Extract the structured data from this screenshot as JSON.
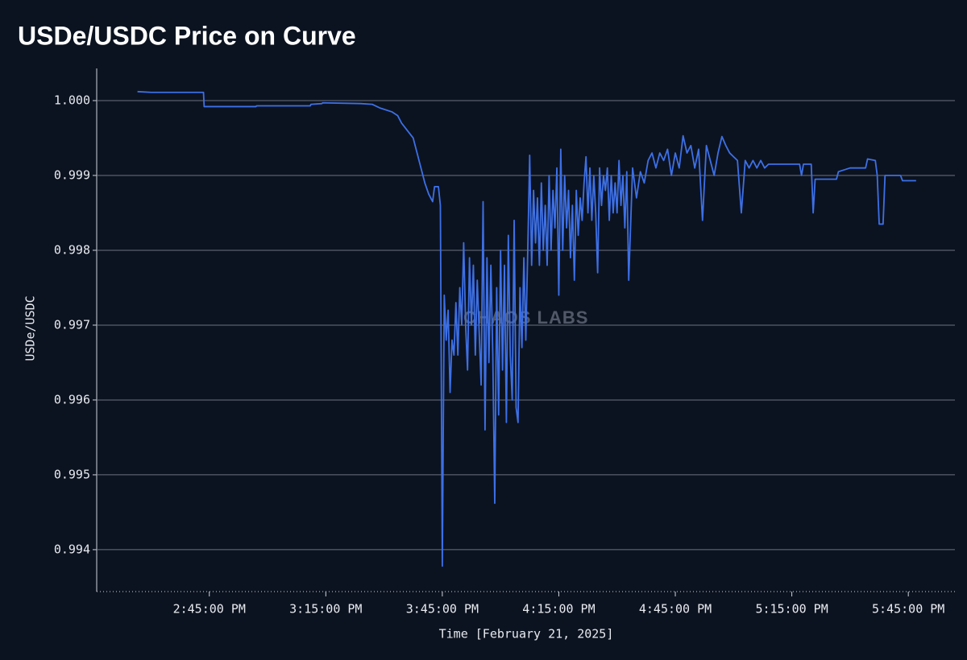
{
  "chart_data": {
    "type": "line",
    "title": "USDe/USDC Price on Curve",
    "xlabel": "Time [February 21, 2025]",
    "ylabel": "USDe/USDC",
    "watermark": "CHAOS LABS",
    "color": "#3d70e6",
    "grid": true,
    "xlim": [
      "14:16:00",
      "17:57:00"
    ],
    "xticks": [
      {
        "value": "14:45:00",
        "label": "2:45:00 PM"
      },
      {
        "value": "15:15:00",
        "label": "3:15:00 PM"
      },
      {
        "value": "15:45:00",
        "label": "3:45:00 PM"
      },
      {
        "value": "16:15:00",
        "label": "4:15:00 PM"
      },
      {
        "value": "16:45:00",
        "label": "4:45:00 PM"
      },
      {
        "value": "17:15:00",
        "label": "5:15:00 PM"
      },
      {
        "value": "17:45:00",
        "label": "5:45:00 PM"
      }
    ],
    "ylim": [
      0.99344,
      1.00043
    ],
    "yticks": [
      0.994,
      0.995,
      0.996,
      0.997,
      0.998,
      0.999,
      {
        "value": 1,
        "label": "1.000"
      }
    ],
    "x": [
      "14:26:30",
      "14:30:00",
      "14:43:30",
      "14:43:40",
      "14:57:00",
      "14:57:10",
      "15:11:00",
      "15:11:10",
      "15:14:00",
      "15:14:10",
      "15:24:00",
      "15:27:00",
      "15:29:00",
      "15:32:00",
      "15:33:30",
      "15:34:30",
      "15:36:00",
      "15:37:30",
      "15:38:30",
      "15:39:30",
      "15:40:30",
      "15:41:30",
      "15:42:30",
      "15:43:00",
      "15:44:00",
      "15:44:30",
      "15:45:00",
      "15:45:30",
      "15:46:00",
      "15:46:30",
      "15:47:00",
      "15:47:30",
      "15:48:00",
      "15:48:30",
      "15:49:00",
      "15:49:30",
      "15:50:00",
      "15:50:30",
      "15:51:00",
      "15:51:30",
      "15:52:00",
      "15:52:30",
      "15:53:00",
      "15:53:30",
      "15:54:00",
      "15:54:30",
      "15:55:00",
      "15:55:30",
      "15:56:00",
      "15:56:30",
      "15:57:00",
      "15:57:30",
      "15:58:00",
      "15:58:30",
      "15:59:00",
      "15:59:30",
      "16:00:00",
      "16:00:30",
      "16:01:00",
      "16:01:30",
      "16:02:00",
      "16:02:30",
      "16:03:00",
      "16:03:30",
      "16:04:00",
      "16:04:30",
      "16:05:00",
      "16:05:30",
      "16:06:00",
      "16:06:30",
      "16:07:00",
      "16:07:30",
      "16:08:00",
      "16:08:30",
      "16:09:00",
      "16:09:30",
      "16:10:00",
      "16:10:30",
      "16:11:00",
      "16:11:30",
      "16:12:00",
      "16:12:30",
      "16:13:00",
      "16:13:30",
      "16:14:00",
      "16:14:30",
      "16:15:00",
      "16:15:30",
      "16:16:00",
      "16:16:30",
      "16:17:00",
      "16:17:30",
      "16:18:00",
      "16:18:30",
      "16:19:00",
      "16:19:30",
      "16:20:00",
      "16:20:30",
      "16:21:00",
      "16:21:30",
      "16:22:00",
      "16:22:30",
      "16:23:00",
      "16:23:30",
      "16:24:00",
      "16:24:30",
      "16:25:00",
      "16:25:30",
      "16:26:00",
      "16:26:30",
      "16:27:00",
      "16:27:30",
      "16:28:00",
      "16:28:30",
      "16:29:00",
      "16:29:30",
      "16:30:00",
      "16:30:30",
      "16:31:00",
      "16:31:30",
      "16:32:00",
      "16:32:30",
      "16:33:00",
      "16:34:00",
      "16:35:00",
      "16:36:00",
      "16:37:00",
      "16:38:00",
      "16:39:00",
      "16:40:00",
      "16:41:00",
      "16:42:00",
      "16:43:00",
      "16:44:00",
      "16:45:00",
      "16:46:00",
      "16:47:00",
      "16:48:00",
      "16:49:00",
      "16:50:00",
      "16:51:00",
      "16:52:00",
      "16:53:00",
      "16:54:00",
      "16:55:00",
      "16:56:00",
      "16:57:00",
      "16:58:00",
      "16:59:00",
      "17:00:00",
      "17:01:00",
      "17:02:00",
      "17:03:00",
      "17:04:00",
      "17:05:00",
      "17:06:00",
      "17:07:00",
      "17:08:00",
      "17:09:00",
      "17:17:00",
      "17:17:30",
      "17:18:00",
      "17:20:00",
      "17:20:30",
      "17:21:00",
      "17:26:30",
      "17:27:00",
      "17:30:00",
      "17:34:00",
      "17:34:30",
      "17:36:30",
      "17:37:00",
      "17:37:30",
      "17:38:30",
      "17:39:00",
      "17:43:00",
      "17:43:30",
      "17:47:00"
    ],
    "values": [
      1.00012,
      1.00011,
      1.00011,
      0.99992,
      0.99992,
      0.99993,
      0.99993,
      0.99995,
      0.99996,
      0.99997,
      0.99996,
      0.99995,
      0.9999,
      0.99985,
      0.9998,
      0.9997,
      0.9996,
      0.9995,
      0.9993,
      0.9991,
      0.9989,
      0.99875,
      0.99865,
      0.99885,
      0.99885,
      0.9986,
      0.99378,
      0.9974,
      0.9968,
      0.9972,
      0.9961,
      0.9968,
      0.9966,
      0.9973,
      0.9966,
      0.9975,
      0.997,
      0.9981,
      0.997,
      0.9964,
      0.9979,
      0.997,
      0.9978,
      0.9966,
      0.9976,
      0.9969,
      0.9962,
      0.99865,
      0.9956,
      0.9979,
      0.9965,
      0.9978,
      0.9966,
      0.99462,
      0.9975,
      0.9958,
      0.998,
      0.9964,
      0.9978,
      0.9957,
      0.9982,
      0.9966,
      0.996,
      0.9984,
      0.9959,
      0.9957,
      0.9975,
      0.9967,
      0.9979,
      0.9968,
      0.998,
      0.99927,
      0.9978,
      0.9988,
      0.9981,
      0.9987,
      0.9978,
      0.9989,
      0.998,
      0.9986,
      0.9978,
      0.999,
      0.998,
      0.9988,
      0.9983,
      0.9991,
      0.9974,
      0.99935,
      0.998,
      0.999,
      0.9983,
      0.9988,
      0.9979,
      0.9986,
      0.9976,
      0.9988,
      0.9982,
      0.9987,
      0.9984,
      0.9989,
      0.99925,
      0.9985,
      0.9991,
      0.9984,
      0.999,
      0.9985,
      0.9977,
      0.9991,
      0.9986,
      0.999,
      0.9988,
      0.9991,
      0.9984,
      0.999,
      0.9985,
      0.9989,
      0.9985,
      0.9992,
      0.9986,
      0.999,
      0.9983,
      0.99905,
      0.9976,
      0.9991,
      0.9987,
      0.99905,
      0.9989,
      0.9992,
      0.9993,
      0.9991,
      0.9993,
      0.9992,
      0.99935,
      0.999,
      0.9993,
      0.9991,
      0.99953,
      0.9993,
      0.9994,
      0.9991,
      0.99935,
      0.9984,
      0.9994,
      0.9992,
      0.999,
      0.9993,
      0.99952,
      0.9994,
      0.9993,
      0.99925,
      0.9992,
      0.9985,
      0.9992,
      0.9991,
      0.9992,
      0.9991,
      0.9992,
      0.9991,
      0.99915,
      0.99915,
      0.999,
      0.99915,
      0.99915,
      0.9985,
      0.99895,
      0.99895,
      0.99905,
      0.9991,
      0.9991,
      0.99922,
      0.9992,
      0.999,
      0.99835,
      0.99835,
      0.999,
      0.999,
      0.99893,
      0.99893
    ]
  }
}
